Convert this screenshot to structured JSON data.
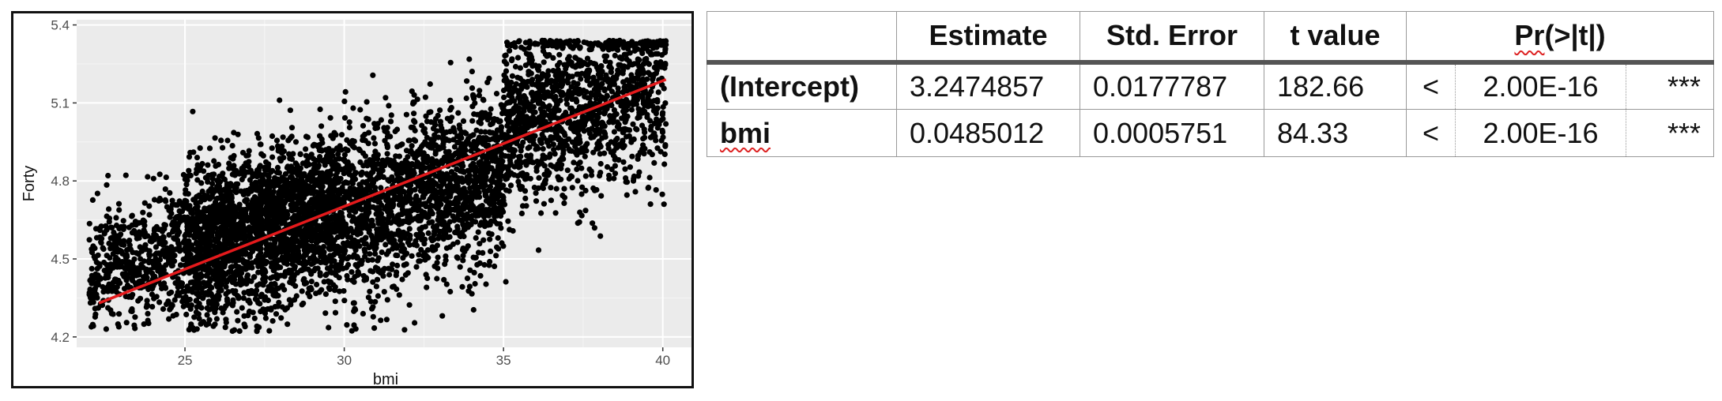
{
  "chart_data": {
    "type": "scatter",
    "title": "",
    "xlabel": "bmi",
    "ylabel": "Forty",
    "xlim": [
      21.6,
      41.0
    ],
    "ylim": [
      4.16,
      5.42
    ],
    "xticks": [
      25,
      30,
      35,
      40
    ],
    "yticks": [
      4.2,
      4.5,
      4.8,
      5.1,
      5.4
    ],
    "xtick_labels": [
      "25",
      "30",
      "35",
      "40"
    ],
    "ytick_labels": [
      "4.2",
      "4.5",
      "4.8",
      "5.1",
      "5.4"
    ],
    "grid": true,
    "legend": "none",
    "points_note_count": 6000,
    "point_density": [
      {
        "x_range": [
          22,
          25
        ],
        "y_center": 4.5,
        "y_spread": 0.12
      },
      {
        "x_range": [
          25,
          30
        ],
        "y_center": 4.62,
        "y_spread": 0.15
      },
      {
        "x_range": [
          30,
          35
        ],
        "y_center": 4.75,
        "y_spread": 0.16
      },
      {
        "x_range": [
          35,
          40.1
        ],
        "y_center": 5.1,
        "y_spread": 0.17
      }
    ],
    "fit_line": {
      "x": [
        22.3,
        40.1
      ],
      "y": [
        4.33,
        5.19
      ]
    },
    "colors": {
      "points": "#000000",
      "fit_line": "#e41a1c",
      "panel": "#ebebeb",
      "grid": "#ffffff",
      "axis_text": "#4d4d4d"
    }
  },
  "table": {
    "headers": [
      "",
      "Estimate",
      "Std. Error",
      "t value",
      "Pr(>|t|)"
    ],
    "pr_header_underlined": "Pr",
    "pr_header_rest": "(>|t|)",
    "rows": [
      {
        "term": "(Intercept)",
        "estimate": "3.2474857",
        "std_error": "0.0177787",
        "t_value": "182.66",
        "lt": "<",
        "p_value": "2.00E-16",
        "sig": "***"
      },
      {
        "term": "bmi",
        "estimate": "0.0485012",
        "std_error": "0.0005751",
        "t_value": "84.33",
        "lt": "<",
        "p_value": "2.00E-16",
        "sig": "***"
      }
    ]
  }
}
